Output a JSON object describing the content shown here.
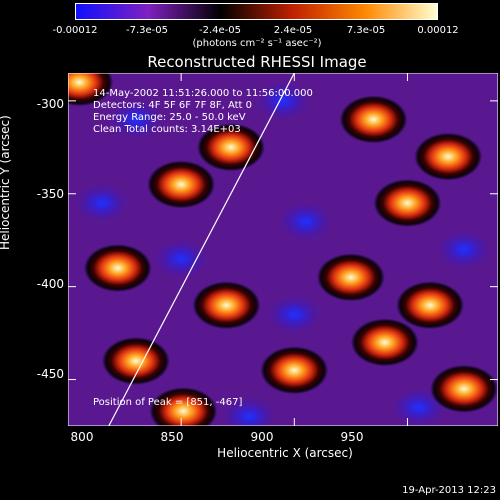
{
  "colorbar": {
    "tick_labels": [
      "-0.00012",
      "-7.3e-05",
      "-2.4e-05",
      "2.4e-05",
      "7.3e-05",
      "0.00012"
    ],
    "unit_label": "(photons cm⁻² s⁻¹ asec⁻²)",
    "colors": [
      "#1010ff",
      "#8020c0",
      "#000000",
      "#c02000",
      "#ff8800",
      "#ffffd0"
    ]
  },
  "chart_data": {
    "type": "heatmap",
    "title": "Reconstructed RHESSI Image",
    "xlabel": "Heliocentric X (arcsec)",
    "ylabel": "Heliocentric Y (arcsec)",
    "xlim": [
      800,
      990
    ],
    "ylim": [
      -475,
      -285
    ],
    "x_ticks": [
      800,
      850,
      900,
      950
    ],
    "y_ticks": [
      -300,
      -350,
      -400,
      -450
    ],
    "limb_line": [
      [
        818,
        -475
      ],
      [
        900,
        -285
      ]
    ],
    "annotations": [
      "14-May-2002 11:51:26.000 to 11:56:00.000",
      "Detectors: 4F 5F 6F 7F 8F, Att 0",
      "Energy Range: 25.0 - 50.0 keV",
      "Clean    Total counts: 3.14E+03",
      "Position of Peak = [851, -467]"
    ],
    "bright_sources": [
      {
        "x": 805,
        "y": -290
      },
      {
        "x": 850,
        "y": -345
      },
      {
        "x": 872,
        "y": -325
      },
      {
        "x": 935,
        "y": -310
      },
      {
        "x": 950,
        "y": -355
      },
      {
        "x": 968,
        "y": -330
      },
      {
        "x": 822,
        "y": -390
      },
      {
        "x": 870,
        "y": -410
      },
      {
        "x": 925,
        "y": -395
      },
      {
        "x": 960,
        "y": -410
      },
      {
        "x": 830,
        "y": -440
      },
      {
        "x": 900,
        "y": -445
      },
      {
        "x": 940,
        "y": -430
      },
      {
        "x": 851,
        "y": -467
      },
      {
        "x": 975,
        "y": -455
      }
    ],
    "dark_sources": [
      {
        "x": 830,
        "y": -310
      },
      {
        "x": 895,
        "y": -300
      },
      {
        "x": 815,
        "y": -355
      },
      {
        "x": 905,
        "y": -365
      },
      {
        "x": 975,
        "y": -380
      },
      {
        "x": 850,
        "y": -385
      },
      {
        "x": 955,
        "y": -465
      },
      {
        "x": 880,
        "y": -470
      },
      {
        "x": 900,
        "y": -415
      }
    ]
  },
  "timestamp": "19-Apr-2013 12:23"
}
